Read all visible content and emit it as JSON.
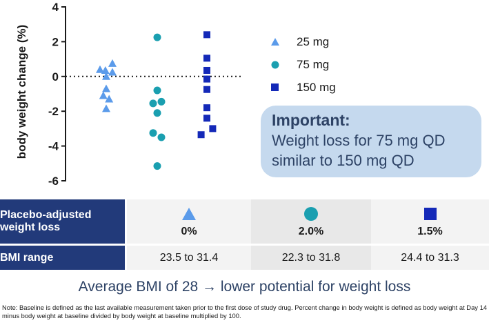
{
  "chart_data": {
    "type": "scatter",
    "ylabel": "body weight change (%)",
    "ylim": [
      -6,
      4
    ],
    "yticks": [
      "4",
      "2",
      "0",
      "-2",
      "-4",
      "-6"
    ],
    "ytick_values": [
      4,
      2,
      0,
      -2,
      -4,
      -6
    ],
    "reference_line": 0,
    "series": [
      {
        "name": "25 mg",
        "marker": "triangle",
        "color": "#5b9bea",
        "points": [
          {
            "group": 1,
            "offset": -0.75,
            "y": 0.4
          },
          {
            "group": 1,
            "offset": -0.1,
            "y": 0.35
          },
          {
            "group": 1,
            "offset": 0.75,
            "y": 0.75
          },
          {
            "group": 1,
            "offset": 0.75,
            "y": 0.25
          },
          {
            "group": 1,
            "offset": 0.0,
            "y": 0.0
          },
          {
            "group": 1,
            "offset": 0.0,
            "y": -0.7
          },
          {
            "group": 1,
            "offset": -0.35,
            "y": -1.1
          },
          {
            "group": 1,
            "offset": 0.35,
            "y": -1.3
          },
          {
            "group": 1,
            "offset": 0.0,
            "y": -1.85
          }
        ]
      },
      {
        "name": "75 mg",
        "marker": "circle",
        "color": "#1a9fb0",
        "points": [
          {
            "group": 2,
            "offset": 0.0,
            "y": 2.25
          },
          {
            "group": 2,
            "offset": 0.0,
            "y": -0.8
          },
          {
            "group": 2,
            "offset": -0.5,
            "y": -1.55
          },
          {
            "group": 2,
            "offset": 0.5,
            "y": -1.45
          },
          {
            "group": 2,
            "offset": 0.0,
            "y": -2.1
          },
          {
            "group": 2,
            "offset": -0.5,
            "y": -3.25
          },
          {
            "group": 2,
            "offset": 0.5,
            "y": -3.5
          },
          {
            "group": 2,
            "offset": 0.0,
            "y": -5.15
          }
        ]
      },
      {
        "name": "150 mg",
        "marker": "square",
        "color": "#1429b8",
        "points": [
          {
            "group": 3,
            "offset": 0.0,
            "y": 2.4
          },
          {
            "group": 3,
            "offset": 0.0,
            "y": 1.05
          },
          {
            "group": 3,
            "offset": 0.0,
            "y": 0.35
          },
          {
            "group": 3,
            "offset": 0.0,
            "y": -0.15
          },
          {
            "group": 3,
            "offset": 0.0,
            "y": -0.75
          },
          {
            "group": 3,
            "offset": 0.0,
            "y": -1.8
          },
          {
            "group": 3,
            "offset": 0.0,
            "y": -2.4
          },
          {
            "group": 3,
            "offset": 0.7,
            "y": -3.0
          },
          {
            "group": 3,
            "offset": -0.7,
            "y": -3.35
          }
        ]
      }
    ]
  },
  "legend": {
    "items": [
      {
        "label": "25 mg",
        "icon": "triangle-icon"
      },
      {
        "label": "75 mg",
        "icon": "circle-icon"
      },
      {
        "label": "150 mg",
        "icon": "square-icon"
      }
    ]
  },
  "callout": {
    "title": "Important:",
    "line1": "Weight loss for 75 mg QD",
    "line2": "similar to 150 mg QD"
  },
  "table": {
    "row1_header_line1": "Placebo-adjusted",
    "row1_header_line2": "weight loss",
    "row1_values": [
      "0%",
      "2.0%",
      "1.5%"
    ],
    "row2_header": "BMI range",
    "row2_values": [
      "23.5 to 31.4",
      "22.3 to 31.8",
      "24.4 to 31.3"
    ]
  },
  "colors": {
    "header_bg": "#223a7a",
    "callout_bg": "#c5d9ee",
    "callout_text": "#2d4265",
    "triangle": "#5b9bea",
    "circle": "#1a9fb0",
    "square": "#1429b8"
  },
  "footer": {
    "title": "Average BMI of 28 → lower potential for weight loss",
    "note": "Note: Baseline is defined as the last available measurement taken prior to the first dose of study drug. Percent change in body weight is defined as body weight at Day 14 minus body weight at baseline divided by body weight at baseline multiplied by 100."
  }
}
